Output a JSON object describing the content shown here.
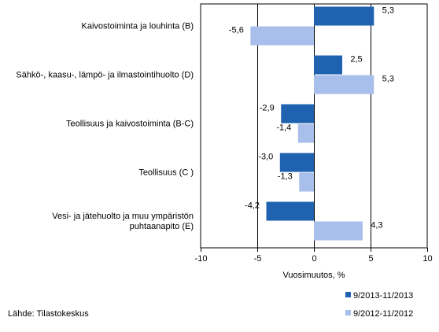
{
  "chart_data": {
    "type": "bar",
    "orientation": "horizontal",
    "categories": [
      [
        "Kaivostoiminta ja louhinta (B)"
      ],
      [
        "Sähkö-, kaasu-, lämpö- ja ilmastointihuolto (D)"
      ],
      [
        "Teollisuus ja kaivostoiminta (B-C)"
      ],
      [
        "Teollisuus (C )"
      ],
      [
        "Vesi- ja jätehuolto ja muu ympäristön",
        "puhtaanapito (E)"
      ]
    ],
    "series": [
      {
        "name": "9/2013-11/2013",
        "color": "#1f62b0",
        "values": [
          5.3,
          2.5,
          -2.9,
          -3.0,
          -4.2
        ],
        "labels": [
          "5,3",
          "2,5",
          "-2,9",
          "-3,0",
          "-4,2"
        ]
      },
      {
        "name": "9/2012-11/2012",
        "color": "#a8bfeb",
        "values": [
          -5.6,
          5.3,
          -1.4,
          -1.3,
          4.3
        ],
        "labels": [
          "-5,6",
          "5,3",
          "-1,4",
          "-1,3",
          "4,3"
        ]
      }
    ],
    "xlim": [
      -10,
      10
    ],
    "xticks": [
      -10,
      -5,
      0,
      5,
      10
    ],
    "xtick_labels": [
      "-10",
      "-5",
      "0",
      "5",
      "10"
    ],
    "xlabel": "Vuosimuutos, %",
    "grid": "vertical",
    "legend_position": "bottom-right"
  },
  "source": "Lähde: Tilastokeskus"
}
